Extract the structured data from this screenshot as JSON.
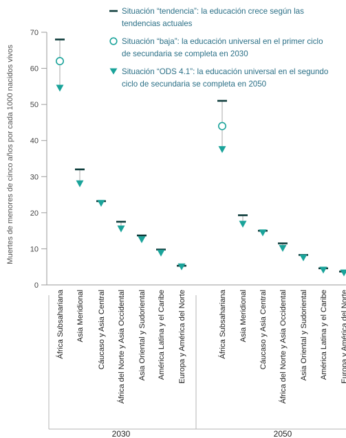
{
  "chart_data": {
    "type": "scatter",
    "ylabel": "Muertes de menores de cinco años por cada 1000 nacidos vivos",
    "ylim": [
      0,
      70
    ],
    "yticks": [
      0,
      10,
      20,
      30,
      40,
      50,
      60,
      70
    ],
    "colors": {
      "accent": "#1aa39a",
      "dark": "#0c3b3a",
      "arrow": "#bdbdbd",
      "legend_text": "#2a6f86"
    },
    "legend": {
      "placement": "top-right",
      "entries": [
        {
          "marker": "dash",
          "lines": [
            "Situación “tendencia”: la educación crece según las",
            "tendencias actuales"
          ]
        },
        {
          "marker": "circle",
          "lines": [
            "Situación “baja”: la educación universal en el primer ciclo",
            "de secundaria se completa en 2030"
          ]
        },
        {
          "marker": "triangle",
          "lines": [
            "Situación “ODS 4.1”: la educación universal en el segundo",
            "ciclo de secundaria se completa en 2050"
          ]
        }
      ]
    },
    "series_names": [
      "Situación “tendencia”",
      "Situación “baja”",
      "Situación “ODS 4.1”"
    ],
    "groups": [
      {
        "label": "2030",
        "categories": [
          "África Subsahariana",
          "Asia Meridional",
          "Cáucaso y Asia Central",
          "África del Norte y Asia Occidental",
          "Asia Oriental y Sudoriental",
          "América Latina y el Caribe",
          "Europa y América del Norte"
        ],
        "tendencia": [
          68,
          32,
          23.2,
          17.5,
          13.7,
          9.8,
          5.3
        ],
        "baja": [
          62,
          null,
          null,
          null,
          null,
          null,
          null
        ],
        "ods41": [
          54.5,
          28,
          22.6,
          15.5,
          12.5,
          8.8,
          5.0
        ]
      },
      {
        "label": "2050",
        "categories": [
          "África Subsahariana",
          "Asia Meridional",
          "Cáucaso y Asia Central",
          "África del Norte y Asia Occidental",
          "Asia Oriental y Sudoriental",
          "América Latina y el Caribe",
          "Europa y América del Norte"
        ],
        "tendencia": [
          51,
          19.3,
          15,
          11.5,
          8.3,
          4.6,
          3.7
        ],
        "baja": [
          44,
          null,
          null,
          null,
          null,
          null,
          null
        ],
        "ods41": [
          37.5,
          16.8,
          14.4,
          10.1,
          7.5,
          4.1,
          3.3
        ]
      }
    ]
  }
}
